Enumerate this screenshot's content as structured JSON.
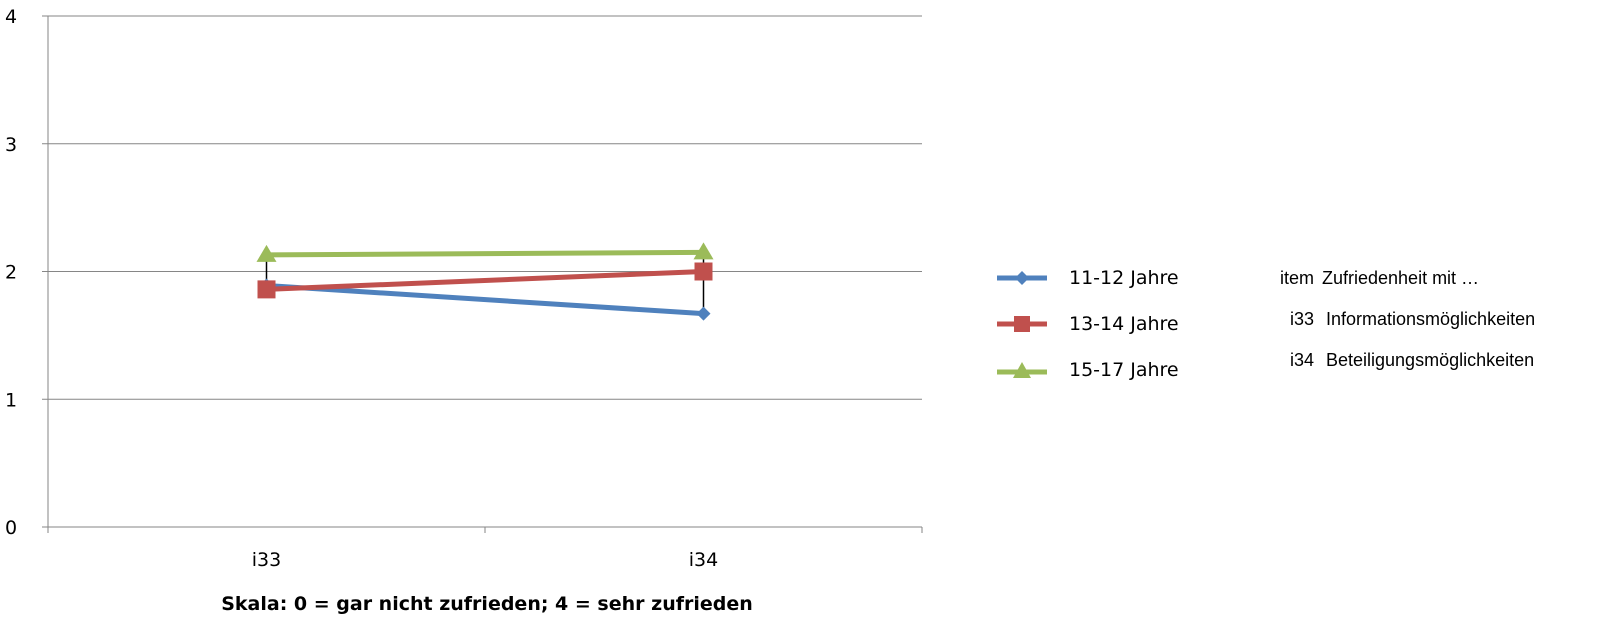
{
  "chart_data": {
    "type": "line",
    "categories": [
      "i33",
      "i34"
    ],
    "series": [
      {
        "name": "11-12 Jahre",
        "values": [
          1.89,
          1.67
        ],
        "color": "#4f81bd",
        "marker": "diamond"
      },
      {
        "name": "13-14 Jahre",
        "values": [
          1.86,
          2.0
        ],
        "color": "#c0504d",
        "marker": "square"
      },
      {
        "name": "15-17 Jahre",
        "values": [
          2.13,
          2.15
        ],
        "color": "#9bbb59",
        "marker": "triangle"
      }
    ],
    "hi_lo_lines": true,
    "xlabel": "Skala: 0 = gar nicht zufrieden; 4 = sehr zufrieden",
    "ylabel": "",
    "ylim": [
      0,
      4
    ],
    "yticks": [
      "0",
      "1",
      "2",
      "3",
      "4"
    ],
    "grid": true,
    "legend_position": "right"
  },
  "items_table": {
    "header": {
      "code": "item",
      "text": "Zufriedenheit mit …"
    },
    "rows": [
      {
        "code": "i33",
        "text": "Informationsmöglichkeiten"
      },
      {
        "code": "i34",
        "text": "Beteiligungsmöglichkeiten"
      }
    ]
  }
}
